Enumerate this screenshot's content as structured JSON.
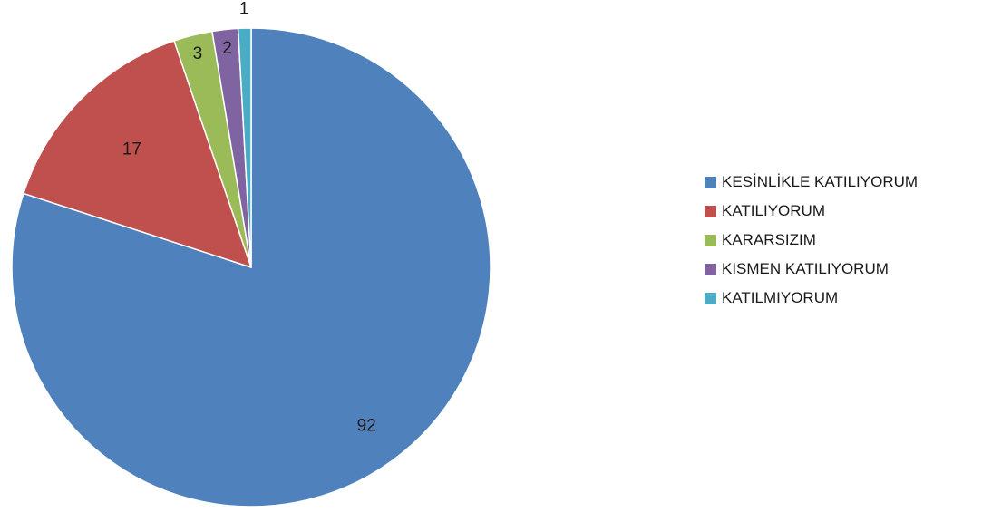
{
  "chart_data": {
    "type": "pie",
    "title": "",
    "categories": [
      "KESİNLİKLE KATILIYORUM",
      "KATILIYORUM",
      "KARARSIZIM",
      "KISMEN KATILIYORUM",
      "KATILMIYORUM"
    ],
    "values": [
      92,
      17,
      3,
      2,
      1
    ],
    "data_labels": [
      "92",
      "17",
      "3",
      "2",
      "1"
    ],
    "colors": [
      "#4F81BD",
      "#C0504D",
      "#9BBB59",
      "#8064A2",
      "#4BACC6"
    ],
    "start_angle_deg": 0,
    "direction": "clockwise",
    "legend_position": "right"
  }
}
